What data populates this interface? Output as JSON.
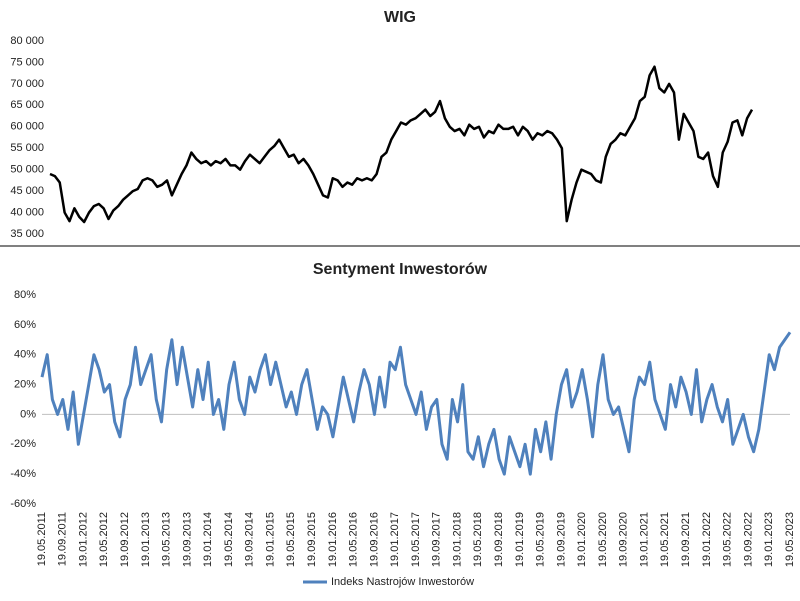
{
  "chart_data": [
    {
      "type": "line",
      "title": "WIG",
      "color": "#000000",
      "ylim": [
        35000,
        80000
      ],
      "yticks": [
        {
          "value": 35000,
          "label": "35 000"
        },
        {
          "value": 40000,
          "label": "40 000"
        },
        {
          "value": 45000,
          "label": "45 000"
        },
        {
          "value": 50000,
          "label": "50 000"
        },
        {
          "value": 55000,
          "label": "55 000"
        },
        {
          "value": 60000,
          "label": "60 000"
        },
        {
          "value": 65000,
          "label": "65 000"
        },
        {
          "value": 70000,
          "label": "70 000"
        },
        {
          "value": 75000,
          "label": "75 000"
        },
        {
          "value": 80000,
          "label": "80 000"
        }
      ],
      "values": [
        49000,
        48500,
        47000,
        40000,
        38000,
        41000,
        39000,
        37800,
        40000,
        41500,
        42000,
        41000,
        38500,
        40500,
        41500,
        43000,
        44000,
        45000,
        45500,
        47500,
        48000,
        47500,
        46000,
        46500,
        47500,
        44000,
        46500,
        49000,
        51000,
        54000,
        52500,
        51500,
        52000,
        51000,
        52000,
        51500,
        52500,
        51000,
        51000,
        50000,
        52000,
        53500,
        52500,
        51500,
        53000,
        54500,
        55500,
        57000,
        55000,
        53000,
        53500,
        51500,
        52500,
        51000,
        49000,
        46500,
        44000,
        43500,
        48000,
        47500,
        46000,
        47000,
        46500,
        48000,
        47500,
        48000,
        47500,
        49000,
        53000,
        54000,
        57000,
        59000,
        61000,
        60500,
        61500,
        62000,
        63000,
        64000,
        62500,
        63500,
        66000,
        62000,
        60000,
        59000,
        59500,
        58000,
        60500,
        59500,
        60000,
        57500,
        59000,
        58500,
        60500,
        59500,
        59500,
        60000,
        58000,
        60000,
        59000,
        57000,
        58500,
        58000,
        59000,
        58500,
        57000,
        55000,
        38000,
        43000,
        47000,
        50000,
        49500,
        49000,
        47500,
        47000,
        53000,
        56000,
        57000,
        58500,
        58000,
        60000,
        62000,
        66000,
        67000,
        72000,
        74000,
        69000,
        68000,
        70000,
        68000,
        57000,
        63000,
        61000,
        59000,
        53000,
        52500,
        54000,
        48500,
        46000,
        54000,
        56500,
        61000,
        61500,
        58000,
        62000,
        64000
      ]
    },
    {
      "type": "line",
      "title": "Sentyment Inwestorów",
      "ylim": [
        -60,
        80
      ],
      "yticks": [
        {
          "value": -60,
          "label": "-60%"
        },
        {
          "value": -40,
          "label": "-40%"
        },
        {
          "value": -20,
          "label": "-20%"
        },
        {
          "value": 0,
          "label": "0%"
        },
        {
          "value": 20,
          "label": "20%"
        },
        {
          "value": 40,
          "label": "40%"
        },
        {
          "value": 60,
          "label": "60%"
        },
        {
          "value": 80,
          "label": "80%"
        }
      ],
      "legend": "bottom",
      "categories": [
        "19.05.2011",
        null,
        null,
        null,
        "19.09.2011",
        null,
        null,
        null,
        "19.01.2012",
        null,
        null,
        null,
        "19.05.2012",
        null,
        null,
        null,
        "19.09.2012",
        null,
        null,
        null,
        "19.01.2013",
        null,
        null,
        null,
        "19.05.2013",
        null,
        null,
        null,
        "19.09.2013",
        null,
        null,
        null,
        "19.01.2014",
        null,
        null,
        null,
        "19.05.2014",
        null,
        null,
        null,
        "19.09.2014",
        null,
        null,
        null,
        "19.01.2015",
        null,
        null,
        null,
        "19.05.2015",
        null,
        null,
        null,
        "19.09.2015",
        null,
        null,
        null,
        "19.01.2016",
        null,
        null,
        null,
        "19.05.2016",
        null,
        null,
        null,
        "19.09.2016",
        null,
        null,
        null,
        "19.01.2017",
        null,
        null,
        null,
        "19.05.2017",
        null,
        null,
        null,
        "19.09.2017",
        null,
        null,
        null,
        "19.01.2018",
        null,
        null,
        null,
        "19.05.2018",
        null,
        null,
        null,
        "19.09.2018",
        null,
        null,
        null,
        "19.01.2019",
        null,
        null,
        null,
        "19.05.2019",
        null,
        null,
        null,
        "19.09.2019",
        null,
        null,
        null,
        "19.01.2020",
        null,
        null,
        null,
        "19.05.2020",
        null,
        null,
        null,
        "19.09.2020",
        null,
        null,
        null,
        "19.01.2021",
        null,
        null,
        null,
        "19.05.2021",
        null,
        null,
        null,
        "19.09.2021",
        null,
        null,
        null,
        "19.01.2022",
        null,
        null,
        null,
        "19.05.2022",
        null,
        null,
        null,
        "19.09.2022",
        null,
        null,
        null,
        "19.01.2023",
        null,
        null,
        null,
        "19.05.2023"
      ],
      "series": [
        {
          "name": "Indeks Nastrojów Inwestorów",
          "color": "#4f81bd",
          "values": [
            25,
            40,
            10,
            0,
            10,
            -10,
            15,
            -20,
            0,
            20,
            40,
            30,
            15,
            20,
            -5,
            -15,
            10,
            20,
            45,
            20,
            30,
            40,
            10,
            -5,
            30,
            50,
            20,
            45,
            25,
            5,
            30,
            10,
            35,
            0,
            10,
            -10,
            20,
            35,
            10,
            0,
            25,
            15,
            30,
            40,
            20,
            35,
            20,
            5,
            15,
            0,
            20,
            30,
            10,
            -10,
            5,
            0,
            -15,
            5,
            25,
            10,
            -5,
            15,
            30,
            20,
            0,
            25,
            5,
            35,
            30,
            45,
            20,
            10,
            0,
            15,
            -10,
            5,
            10,
            -20,
            -30,
            10,
            -5,
            20,
            -25,
            -30,
            -15,
            -35,
            -20,
            -10,
            -30,
            -40,
            -15,
            -25,
            -35,
            -20,
            -40,
            -10,
            -25,
            -5,
            -30,
            0,
            20,
            30,
            5,
            15,
            30,
            10,
            -15,
            20,
            40,
            10,
            0,
            5,
            -10,
            -25,
            10,
            25,
            20,
            35,
            10,
            0,
            -10,
            20,
            5,
            25,
            15,
            0,
            30,
            -5,
            10,
            20,
            5,
            -5,
            10,
            -20,
            -10,
            0,
            -15,
            -25,
            -10,
            15,
            40,
            30,
            45,
            50,
            55
          ]
        }
      ]
    }
  ]
}
